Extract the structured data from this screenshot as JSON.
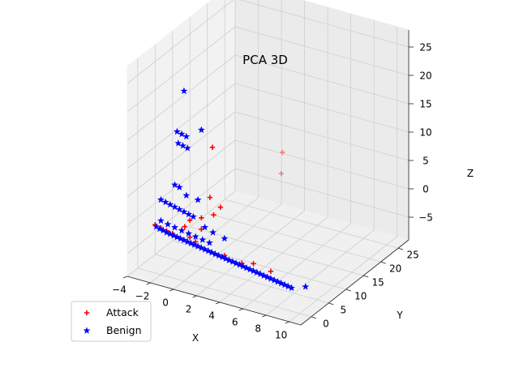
{
  "chart_data": {
    "type": "scatter",
    "projection": "3d",
    "title": "PCA 3D",
    "xlabel": "X",
    "ylabel": "Y",
    "zlabel": "Z",
    "xlim": [
      -4,
      11
    ],
    "ylim": [
      -3,
      28
    ],
    "zlim": [
      -9,
      28
    ],
    "xticks": [
      -4,
      -2,
      0,
      2,
      4,
      6,
      8,
      10
    ],
    "yticks": [
      0,
      5,
      10,
      15,
      20,
      25
    ],
    "zticks": [
      -5,
      0,
      5,
      10,
      15,
      20,
      25
    ],
    "grid": true,
    "legend": "lower-left",
    "series": [
      {
        "name": "Attack",
        "marker": "plus",
        "color": "#ff0000",
        "points": [
          [
            -2.5,
            0.0,
            -0.5
          ],
          [
            -2.0,
            0.0,
            -0.8
          ],
          [
            -1.5,
            0.0,
            -1.0
          ],
          [
            -1.0,
            0.0,
            -1.2
          ],
          [
            0.0,
            0.2,
            0.5
          ],
          [
            0.5,
            0.0,
            -1.0
          ],
          [
            1.0,
            0.0,
            -1.5
          ],
          [
            1.5,
            0.0,
            1.0
          ],
          [
            3.5,
            0.0,
            -2.5
          ],
          [
            5.0,
            0.0,
            -3.0
          ],
          [
            6.0,
            0.0,
            -2.5
          ],
          [
            7.5,
            0.0,
            -3.0
          ],
          [
            3.0,
            0.5,
            5.5
          ],
          [
            2.0,
            0.8,
            6.5
          ],
          [
            2.5,
            0.2,
            4.0
          ],
          [
            1.5,
            0.0,
            3.0
          ],
          [
            0.5,
            0.0,
            2.0
          ],
          [
            2.0,
            1.5,
            15.0
          ],
          [
            5.5,
            10.0,
            12.0
          ],
          [
            6.0,
            8.0,
            9.5
          ]
        ]
      },
      {
        "name": "Benign",
        "marker": "star",
        "color": "#0000ff",
        "points": [
          [
            -2.4,
            0.0,
            -0.8
          ],
          [
            -2.1,
            0.0,
            -1.0
          ],
          [
            -1.8,
            0.0,
            -1.1
          ],
          [
            -1.5,
            0.0,
            -1.3
          ],
          [
            -1.2,
            0.0,
            -1.4
          ],
          [
            -0.9,
            0.0,
            -1.5
          ],
          [
            -0.6,
            0.0,
            -1.6
          ],
          [
            -0.3,
            0.0,
            -1.7
          ],
          [
            0.0,
            0.0,
            -1.8
          ],
          [
            0.3,
            0.0,
            -1.9
          ],
          [
            0.6,
            0.0,
            -2.0
          ],
          [
            0.9,
            0.0,
            -2.1
          ],
          [
            1.2,
            0.0,
            -2.2
          ],
          [
            1.5,
            0.0,
            -2.3
          ],
          [
            1.8,
            0.0,
            -2.4
          ],
          [
            2.1,
            0.0,
            -2.5
          ],
          [
            2.4,
            0.0,
            -2.6
          ],
          [
            2.7,
            0.0,
            -2.7
          ],
          [
            3.0,
            0.0,
            -2.8
          ],
          [
            3.3,
            0.0,
            -2.9
          ],
          [
            3.6,
            0.0,
            -3.0
          ],
          [
            3.9,
            0.0,
            -3.1
          ],
          [
            4.2,
            0.0,
            -3.2
          ],
          [
            4.5,
            0.0,
            -3.3
          ],
          [
            4.8,
            0.0,
            -3.4
          ],
          [
            5.1,
            0.0,
            -3.5
          ],
          [
            5.4,
            0.0,
            -3.6
          ],
          [
            5.7,
            0.0,
            -3.7
          ],
          [
            6.0,
            0.0,
            -3.8
          ],
          [
            6.3,
            0.0,
            -3.9
          ],
          [
            6.6,
            0.0,
            -4.0
          ],
          [
            6.9,
            0.0,
            -4.1
          ],
          [
            7.2,
            0.0,
            -4.2
          ],
          [
            7.5,
            0.0,
            -4.3
          ],
          [
            7.8,
            0.0,
            -4.4
          ],
          [
            8.1,
            0.0,
            -4.5
          ],
          [
            8.4,
            0.0,
            -4.6
          ],
          [
            8.7,
            0.0,
            -4.7
          ],
          [
            9.0,
            0.0,
            -4.8
          ],
          [
            9.3,
            0.0,
            -4.9
          ],
          [
            10.5,
            0.0,
            -4.0
          ],
          [
            -2.0,
            0.0,
            0.5
          ],
          [
            -1.4,
            0.0,
            0.2
          ],
          [
            -0.8,
            0.0,
            0.0
          ],
          [
            -0.2,
            0.0,
            -0.2
          ],
          [
            0.4,
            0.0,
            -0.4
          ],
          [
            1.0,
            0.0,
            -0.6
          ],
          [
            1.6,
            0.0,
            -0.8
          ],
          [
            2.2,
            0.0,
            -1.0
          ],
          [
            -2.0,
            0.0,
            4.2
          ],
          [
            -1.6,
            0.0,
            4.0
          ],
          [
            -1.2,
            0.0,
            3.8
          ],
          [
            -0.8,
            0.0,
            3.6
          ],
          [
            -0.4,
            0.0,
            3.4
          ],
          [
            0.0,
            0.0,
            3.2
          ],
          [
            0.4,
            0.0,
            3.0
          ],
          [
            0.8,
            0.0,
            2.8
          ],
          [
            -0.8,
            0.0,
            7.5
          ],
          [
            -0.4,
            0.0,
            7.3
          ],
          [
            0.2,
            0.0,
            6.2
          ],
          [
            -0.5,
            0.0,
            15.0
          ],
          [
            -0.1,
            0.0,
            14.8
          ],
          [
            0.3,
            0.0,
            14.6
          ],
          [
            -0.6,
            0.0,
            17.0
          ],
          [
            -0.2,
            0.0,
            16.8
          ],
          [
            0.2,
            0.0,
            16.6
          ],
          [
            0.0,
            0.0,
            24.5
          ],
          [
            1.5,
            0.0,
            18.5
          ],
          [
            2.5,
            0.0,
            1.0
          ],
          [
            1.8,
            0.0,
            1.5
          ],
          [
            1.2,
            0.0,
            6.0
          ],
          [
            3.5,
            0.0,
            0.5
          ]
        ]
      }
    ]
  }
}
